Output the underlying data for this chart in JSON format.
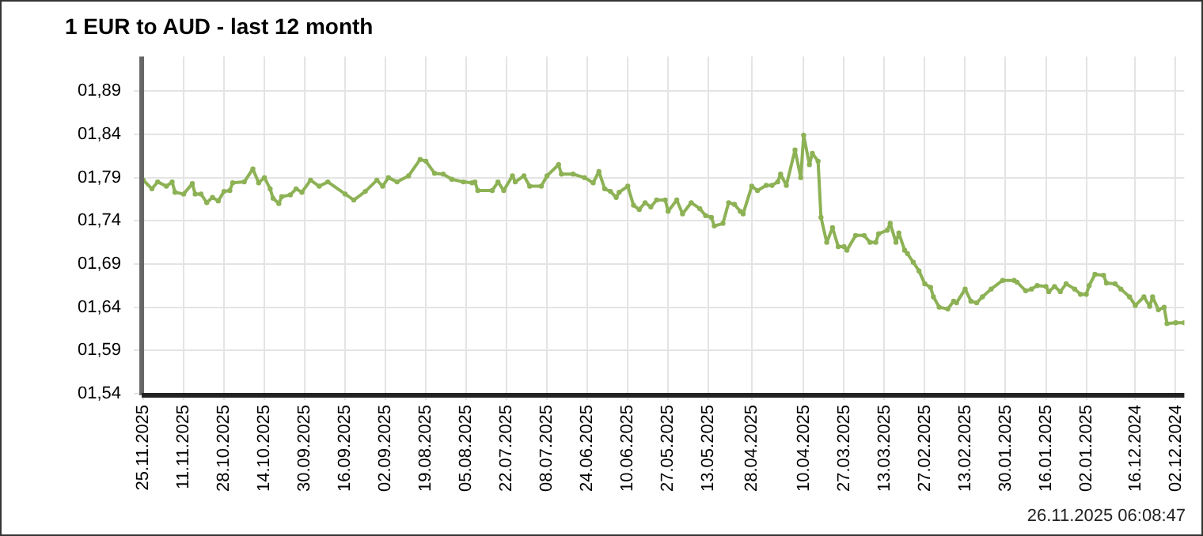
{
  "chart_data": {
    "type": "line",
    "title": "1 EUR to AUD - last 12 month",
    "annotations": [
      "26.11.2025 06:08:47"
    ],
    "x": [
      "2025-11-25",
      "2025-11-22",
      "2025-11-20",
      "2025-11-17",
      "2025-11-15",
      "2025-11-14",
      "2025-11-11",
      "2025-11-08",
      "2025-11-07",
      "2025-11-05",
      "2025-11-03",
      "2025-11-01",
      "2025-10-30",
      "2025-10-28",
      "2025-10-26",
      "2025-10-25",
      "2025-10-21",
      "2025-10-18",
      "2025-10-16",
      "2025-10-14",
      "2025-10-12",
      "2025-10-11",
      "2025-10-09",
      "2025-10-08",
      "2025-10-05",
      "2025-10-03",
      "2025-10-01",
      "2025-09-28",
      "2025-09-25",
      "2025-09-22",
      "2025-09-16",
      "2025-09-13",
      "2025-09-09",
      "2025-09-05",
      "2025-09-03",
      "2025-09-01",
      "2025-08-29",
      "2025-08-25",
      "2025-08-21",
      "2025-08-19",
      "2025-08-16",
      "2025-08-13",
      "2025-08-10",
      "2025-08-06",
      "2025-08-03",
      "2025-08-02",
      "2025-08-01",
      "2025-07-27",
      "2025-07-25",
      "2025-07-23",
      "2025-07-20",
      "2025-07-19",
      "2025-07-16",
      "2025-07-14",
      "2025-07-10",
      "2025-07-08",
      "2025-07-04",
      "2025-07-03",
      "2025-06-29",
      "2025-06-25",
      "2025-06-22",
      "2025-06-20",
      "2025-06-18",
      "2025-06-16",
      "2025-06-14",
      "2025-06-13",
      "2025-06-10",
      "2025-06-08",
      "2025-06-06",
      "2025-06-04",
      "2025-06-02",
      "2025-05-31",
      "2025-05-28",
      "2025-05-27",
      "2025-05-24",
      "2025-05-22",
      "2025-05-19",
      "2025-05-16",
      "2025-05-14",
      "2025-05-12",
      "2025-05-11",
      "2025-05-08",
      "2025-05-06",
      "2025-05-04",
      "2025-05-02",
      "2025-05-01",
      "2025-04-28",
      "2025-04-26",
      "2025-04-23",
      "2025-04-21",
      "2025-04-19",
      "2025-04-18",
      "2025-04-16",
      "2025-04-13",
      "2025-04-11",
      "2025-04-10",
      "2025-04-08",
      "2025-04-07",
      "2025-04-05",
      "2025-04-04",
      "2025-04-02",
      "2025-03-31",
      "2025-03-29",
      "2025-03-27",
      "2025-03-26",
      "2025-03-23",
      "2025-03-20",
      "2025-03-18",
      "2025-03-16",
      "2025-03-15",
      "2025-03-12",
      "2025-03-11",
      "2025-03-09",
      "2025-03-08",
      "2025-03-06",
      "2025-03-05",
      "2025-03-03",
      "2025-03-01",
      "2025-02-27",
      "2025-02-25",
      "2025-02-24",
      "2025-02-22",
      "2025-02-19",
      "2025-02-17",
      "2025-02-16",
      "2025-02-13",
      "2025-02-11",
      "2025-02-09",
      "2025-02-07",
      "2025-02-04",
      "2025-01-31",
      "2025-01-27",
      "2025-01-26",
      "2025-01-23",
      "2025-01-21",
      "2025-01-19",
      "2025-01-16",
      "2025-01-15",
      "2025-01-13",
      "2025-01-11",
      "2025-01-09",
      "2025-01-06",
      "2025-01-04",
      "2025-01-02",
      "2025-01-01",
      "2024-12-30",
      "2024-12-27",
      "2024-12-26",
      "2024-12-23",
      "2024-12-21",
      "2024-12-18",
      "2024-12-16",
      "2024-12-13",
      "2024-12-11",
      "2024-12-10",
      "2024-12-08",
      "2024-12-06",
      "2024-12-05",
      "2024-12-02",
      "2024-11-29"
    ],
    "series": [
      {
        "color": "#8db255",
        "values": [
          1.787,
          1.777,
          1.785,
          1.78,
          1.785,
          1.773,
          1.771,
          1.783,
          1.771,
          1.771,
          1.761,
          1.767,
          1.763,
          1.774,
          1.775,
          1.784,
          1.785,
          1.8,
          1.784,
          1.79,
          1.777,
          1.766,
          1.76,
          1.768,
          1.77,
          1.777,
          1.773,
          1.787,
          1.78,
          1.785,
          1.771,
          1.764,
          1.774,
          1.787,
          1.78,
          1.79,
          1.785,
          1.792,
          1.811,
          1.809,
          1.795,
          1.794,
          1.788,
          1.785,
          1.784,
          1.785,
          1.775,
          1.775,
          1.785,
          1.775,
          1.792,
          1.785,
          1.792,
          1.78,
          1.78,
          1.792,
          1.805,
          1.794,
          1.794,
          1.79,
          1.784,
          1.797,
          1.777,
          1.774,
          1.767,
          1.773,
          1.78,
          1.758,
          1.753,
          1.761,
          1.756,
          1.764,
          1.764,
          1.751,
          1.764,
          1.748,
          1.761,
          1.754,
          1.746,
          1.744,
          1.734,
          1.737,
          1.761,
          1.759,
          1.751,
          1.748,
          1.78,
          1.775,
          1.781,
          1.781,
          1.785,
          1.794,
          1.781,
          1.822,
          1.79,
          1.839,
          1.805,
          1.818,
          1.809,
          1.744,
          1.715,
          1.732,
          1.71,
          1.71,
          1.706,
          1.723,
          1.723,
          1.715,
          1.715,
          1.725,
          1.729,
          1.737,
          1.715,
          1.726,
          1.706,
          1.702,
          1.692,
          1.682,
          1.667,
          1.663,
          1.652,
          1.64,
          1.638,
          1.647,
          1.645,
          1.661,
          1.647,
          1.645,
          1.652,
          1.661,
          1.671,
          1.671,
          1.669,
          1.659,
          1.661,
          1.665,
          1.664,
          1.658,
          1.664,
          1.658,
          1.667,
          1.661,
          1.655,
          1.655,
          1.665,
          1.678,
          1.677,
          1.668,
          1.667,
          1.661,
          1.652,
          1.642,
          1.652,
          1.641,
          1.652,
          1.637,
          1.64,
          1.621,
          1.622,
          1.622
        ]
      }
    ],
    "xlim": [
      "2025-11-25",
      "2024-11-29"
    ],
    "xticks": [
      {
        "value": "2025-11-25",
        "label": "25.11.2025"
      },
      {
        "value": "2025-11-11",
        "label": "11.11.2025"
      },
      {
        "value": "2025-10-28",
        "label": "28.10.2025"
      },
      {
        "value": "2025-10-14",
        "label": "14.10.2025"
      },
      {
        "value": "2025-09-30",
        "label": "30.09.2025"
      },
      {
        "value": "2025-09-16",
        "label": "16.09.2025"
      },
      {
        "value": "2025-09-02",
        "label": "02.09.2025"
      },
      {
        "value": "2025-08-19",
        "label": "19.08.2025"
      },
      {
        "value": "2025-08-05",
        "label": "05.08.2025"
      },
      {
        "value": "2025-07-22",
        "label": "22.07.2025"
      },
      {
        "value": "2025-07-08",
        "label": "08.07.2025"
      },
      {
        "value": "2025-06-24",
        "label": "24.06.2025"
      },
      {
        "value": "2025-06-10",
        "label": "10.06.2025"
      },
      {
        "value": "2025-05-27",
        "label": "27.05.2025"
      },
      {
        "value": "2025-05-13",
        "label": "13.05.2025"
      },
      {
        "value": "2025-04-28",
        "label": "28.04.2025"
      },
      {
        "value": "2025-04-10",
        "label": "10.04.2025"
      },
      {
        "value": "2025-03-27",
        "label": "27.03.2025"
      },
      {
        "value": "2025-03-13",
        "label": "13.03.2025"
      },
      {
        "value": "2025-02-27",
        "label": "27.02.2025"
      },
      {
        "value": "2025-02-13",
        "label": "13.02.2025"
      },
      {
        "value": "2025-01-30",
        "label": "30.01.2025"
      },
      {
        "value": "2025-01-16",
        "label": "16.01.2025"
      },
      {
        "value": "2025-01-02",
        "label": "02.01.2025"
      },
      {
        "value": "2024-12-16",
        "label": "16.12.2024"
      },
      {
        "value": "2024-12-02",
        "label": "02.12.2024"
      }
    ],
    "ylim": [
      1.54,
      1.93
    ],
    "yticks": [
      {
        "value": 1.54,
        "label": "01,54"
      },
      {
        "value": 1.59,
        "label": "01,59"
      },
      {
        "value": 1.64,
        "label": "01,64"
      },
      {
        "value": 1.69,
        "label": "01,69"
      },
      {
        "value": 1.74,
        "label": "01,74"
      },
      {
        "value": 1.79,
        "label": "01,79"
      },
      {
        "value": 1.84,
        "label": "01,84"
      },
      {
        "value": 1.89,
        "label": "01,89"
      }
    ],
    "grid": true,
    "marker": "circle",
    "legend": false
  }
}
